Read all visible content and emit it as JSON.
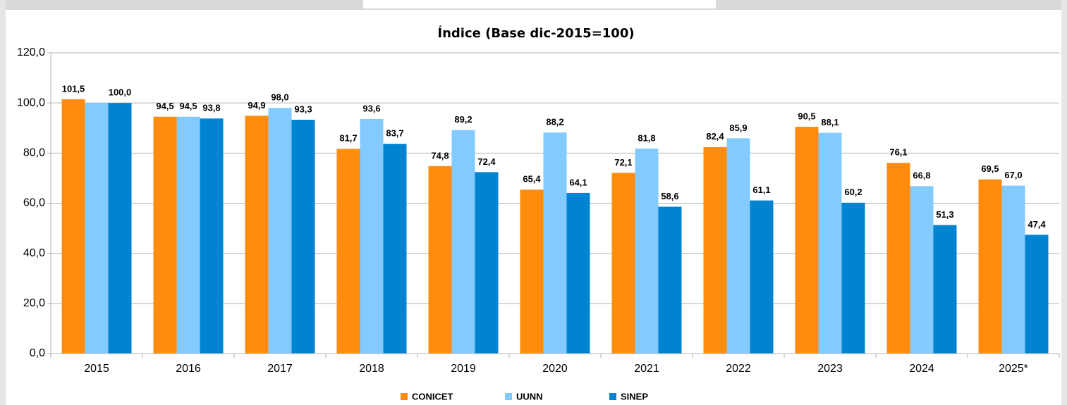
{
  "chart_data": {
    "type": "bar",
    "title": "Índice (Base dic-2015=100)",
    "categories": [
      "2015",
      "2016",
      "2017",
      "2018",
      "2019",
      "2020",
      "2021",
      "2022",
      "2023",
      "2024",
      "2025*"
    ],
    "series": [
      {
        "name": "CONICET",
        "color": "#ff8c0f",
        "values": [
          101.5,
          94.5,
          94.9,
          81.7,
          74.8,
          65.4,
          72.1,
          82.4,
          90.5,
          76.1,
          69.5
        ],
        "value_labels": [
          "101,5",
          "94,5",
          "94,9",
          "81,7",
          "74,8",
          "65,4",
          "72,1",
          "82,4",
          "90,5",
          "76,1",
          "69,5"
        ]
      },
      {
        "name": "UUNN",
        "color": "#83caff",
        "values": [
          100.0,
          94.5,
          98.0,
          93.6,
          89.2,
          88.2,
          81.8,
          85.9,
          88.1,
          66.8,
          67.0
        ],
        "value_labels": [
          null,
          "94,5",
          "98,0",
          "93,6",
          "89,2",
          "88,2",
          "81,8",
          "85,9",
          "88,1",
          "66,8",
          "67,0"
        ]
      },
      {
        "name": "SINEP",
        "color": "#0084d1",
        "values": [
          100.0,
          93.8,
          93.3,
          83.7,
          72.4,
          64.1,
          58.6,
          61.1,
          60.2,
          51.3,
          47.4
        ],
        "value_labels": [
          "100,0",
          "93,8",
          "93,3",
          "83,7",
          "72,4",
          "64,1",
          "58,6",
          "61,1",
          "60,2",
          "51,3",
          "47,4"
        ]
      }
    ],
    "ylim": [
      0,
      120
    ],
    "yticks": [
      {
        "value": 0,
        "label": "0,0"
      },
      {
        "value": 20,
        "label": "20,0"
      },
      {
        "value": 40,
        "label": "40,0"
      },
      {
        "value": 60,
        "label": "60,0"
      },
      {
        "value": 80,
        "label": "80,0"
      },
      {
        "value": 100,
        "label": "100,0"
      },
      {
        "value": 120,
        "label": "120,0"
      }
    ],
    "grid": true,
    "legend": "bottom"
  }
}
